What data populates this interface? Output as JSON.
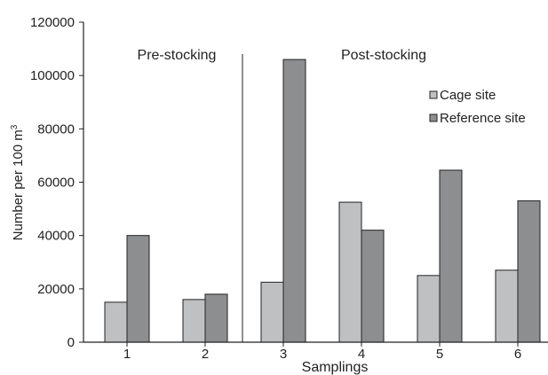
{
  "chart_data": {
    "type": "bar",
    "categories": [
      "1",
      "2",
      "3",
      "4",
      "5",
      "6"
    ],
    "series": [
      {
        "name": "Cage site",
        "values": [
          15000,
          16000,
          22500,
          52500,
          25000,
          27000
        ],
        "color": "#bfc0c2"
      },
      {
        "name": "Reference site",
        "values": [
          40000,
          18000,
          106000,
          42000,
          64500,
          53000
        ],
        "color": "#8d8e90"
      }
    ],
    "xlabel": "Samplings",
    "ylabel": "Number per 100 m",
    "ylabel_superscript": "3",
    "ylim": [
      0,
      120000
    ],
    "yticks": [
      "0",
      "20000",
      "40000",
      "60000",
      "80000",
      "100000",
      "120000"
    ],
    "annotations": [
      "Pre-stocking",
      "Post-stocking"
    ],
    "legend_position": "top-right",
    "grid": false
  }
}
